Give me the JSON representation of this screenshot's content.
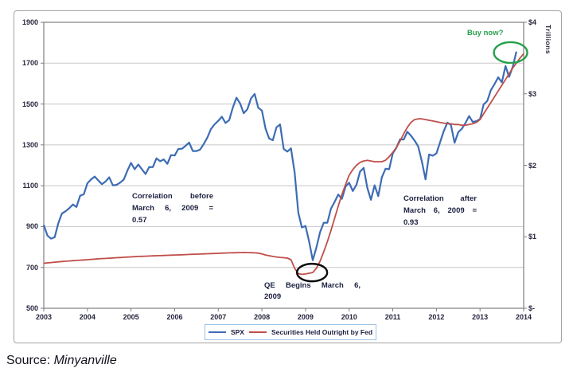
{
  "source": {
    "prefix": "Source:",
    "name": "Minyanville"
  },
  "right_axis_unit": "Trillions",
  "annotations": {
    "corr_before": {
      "lines": [
        "Correlation before",
        "March 6, 2009 =",
        "0.57"
      ]
    },
    "corr_after": {
      "lines": [
        "Correlation after",
        "March 6, 2009 =",
        "0.93"
      ]
    },
    "qe": {
      "lines": [
        "QE Begins March 6,",
        "2009"
      ]
    },
    "buy_now": {
      "text": "Buy now?",
      "color": "#27a04b"
    },
    "ellipses": [
      {
        "name": "qe-begins-ellipse",
        "x_year": 2009.15,
        "y_left": 675,
        "rx": 19,
        "ry": 11,
        "color": "#0a0a0a"
      },
      {
        "name": "buy-now-ellipse",
        "x_year": 2013.7,
        "y_left": 1752,
        "rx": 21,
        "ry": 13,
        "color": "#27a04b"
      }
    ]
  },
  "chart_data": {
    "type": "line",
    "title": "",
    "grid": true,
    "legend_position": "bottom",
    "x_axis": {
      "min": 2003,
      "max": 2014,
      "tick_labels": [
        "2003",
        "2004",
        "2005",
        "2006",
        "2007",
        "2008",
        "2009",
        "2010",
        "2011",
        "2012",
        "2013",
        "2014"
      ]
    },
    "y_left": {
      "min": 500,
      "max": 1900,
      "step": 200,
      "tick_labels": [
        "1900",
        "1700",
        "1500",
        "1300",
        "1100",
        "900",
        "700",
        "500"
      ]
    },
    "y_right": {
      "min": 0,
      "max": 4,
      "step": 1,
      "tick_labels": [
        "$4",
        "$3",
        "$2",
        "$1",
        "$-"
      ],
      "unit_label": "Trillions"
    },
    "series": [
      {
        "name": "SPX",
        "axis": "left",
        "color": "#3c6cb4",
        "x_start": 2003.0,
        "x_step_months": 1,
        "values": [
          908,
          856,
          841,
          848,
          917,
          964,
          975,
          990,
          1008,
          996,
          1051,
          1058,
          1112,
          1131,
          1145,
          1126,
          1107,
          1121,
          1141,
          1102,
          1104,
          1115,
          1130,
          1174,
          1212,
          1181,
          1204,
          1181,
          1157,
          1192,
          1191,
          1234,
          1220,
          1229,
          1207,
          1250,
          1248,
          1280,
          1281,
          1295,
          1311,
          1270,
          1270,
          1277,
          1304,
          1336,
          1378,
          1401,
          1418,
          1438,
          1407,
          1421,
          1482,
          1531,
          1503,
          1455,
          1474,
          1527,
          1549,
          1481,
          1468,
          1379,
          1331,
          1323,
          1386,
          1400,
          1280,
          1267,
          1283,
          1166,
          969,
          896,
          903,
          826,
          735,
          798,
          873,
          919,
          919,
          988,
          1021,
          1057,
          1036,
          1096,
          1115,
          1074,
          1105,
          1169,
          1187,
          1089,
          1031,
          1102,
          1049,
          1141,
          1183,
          1181,
          1258,
          1286,
          1327,
          1326,
          1364,
          1345,
          1321,
          1292,
          1219,
          1131,
          1253,
          1247,
          1258,
          1312,
          1366,
          1409,
          1398,
          1310,
          1362,
          1379,
          1407,
          1441,
          1412,
          1416,
          1426,
          1498,
          1515,
          1569,
          1598,
          1631,
          1606,
          1686,
          1633,
          1682,
          1757
        ]
      },
      {
        "name": "Securities Held Outright by Fed",
        "axis": "right",
        "color": "#bf4f4a",
        "x_start": 2003.0,
        "x_step_months": 1,
        "values": [
          0.63,
          0.635,
          0.64,
          0.645,
          0.65,
          0.654,
          0.658,
          0.662,
          0.666,
          0.67,
          0.673,
          0.676,
          0.68,
          0.684,
          0.688,
          0.692,
          0.695,
          0.698,
          0.701,
          0.704,
          0.707,
          0.71,
          0.713,
          0.716,
          0.719,
          0.722,
          0.725,
          0.727,
          0.729,
          0.731,
          0.733,
          0.735,
          0.737,
          0.739,
          0.741,
          0.743,
          0.745,
          0.747,
          0.749,
          0.751,
          0.753,
          0.755,
          0.757,
          0.759,
          0.761,
          0.763,
          0.765,
          0.767,
          0.769,
          0.771,
          0.773,
          0.775,
          0.777,
          0.778,
          0.779,
          0.78,
          0.779,
          0.778,
          0.776,
          0.772,
          0.76,
          0.745,
          0.735,
          0.725,
          0.718,
          0.712,
          0.707,
          0.702,
          0.68,
          0.56,
          0.485,
          0.475,
          0.48,
          0.49,
          0.5,
          0.56,
          0.66,
          0.79,
          0.93,
          1.09,
          1.26,
          1.43,
          1.59,
          1.73,
          1.86,
          1.94,
          2.0,
          2.04,
          2.06,
          2.07,
          2.06,
          2.05,
          2.05,
          2.05,
          2.07,
          2.12,
          2.18,
          2.25,
          2.34,
          2.44,
          2.53,
          2.6,
          2.64,
          2.65,
          2.65,
          2.64,
          2.63,
          2.62,
          2.61,
          2.6,
          2.59,
          2.58,
          2.58,
          2.57,
          2.57,
          2.56,
          2.56,
          2.57,
          2.58,
          2.6,
          2.64,
          2.72,
          2.8,
          2.88,
          2.96,
          3.04,
          3.12,
          3.2,
          3.28,
          3.36,
          3.43,
          3.5,
          3.56
        ]
      }
    ]
  }
}
